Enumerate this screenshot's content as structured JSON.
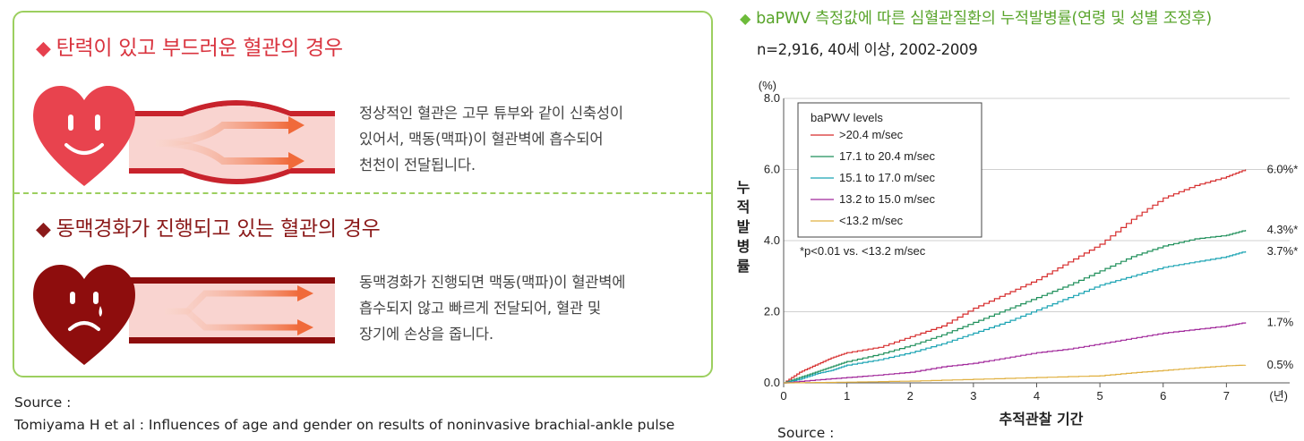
{
  "left_panel": {
    "section1": {
      "title": "탄력이 있고 부드러운 혈관의 경우",
      "desc_lines": [
        "정상적인 혈관은 고무 튜부와 같이 신축성이",
        "있어서, 맥동(맥파)이 혈관벽에 흡수되어",
        "천천이 전달됩니다."
      ]
    },
    "section2": {
      "title": "동맥경화가 진행되고 있는 혈관의 경우",
      "desc_lines": [
        "동맥경화가 진행되면 맥동(맥파)이 혈관벽에",
        "흡수되지 않고 빠르게 전달되어, 혈관 및",
        "장기에 손상을 줍니다."
      ]
    },
    "source_label": "Source :",
    "source_text": "Tomiyama H et al : Influences of age and gender on results of noninvasive brachial-ankle pulse"
  },
  "chart_header": {
    "title": "baPWV 측정값에 따른 심혈관질환의 누적발병률(연령 및 성별 조정후)",
    "subtitle": "n=2,916,  40세 이상, 2002-2009"
  },
  "chart_source_label": "Source :",
  "chart_data": {
    "type": "line",
    "title": "baPWV 측정값에 따른 심혈관질환의 누적발병률(연령 및 성별 조정후)",
    "xlabel": "추적관찰 기간",
    "x_unit": "(년)",
    "ylabel": "누적발병률",
    "y_unit": "(%)",
    "xlim": [
      0,
      8
    ],
    "ylim": [
      0,
      8
    ],
    "x_ticks": [
      "0",
      "1",
      "2",
      "3",
      "4",
      "5",
      "6",
      "7"
    ],
    "y_ticks": [
      "0.0",
      "2.0",
      "4.0",
      "6.0",
      "8.0"
    ],
    "grid": true,
    "legend_title": "baPWV levels",
    "legend_position": "top-left",
    "annotation": "*p<0.01 vs. <13.2 m/sec",
    "series": [
      {
        "name": ">20.4 m/sec",
        "color": "#d62b2b",
        "end_label": "6.0%*",
        "x": [
          0,
          0.25,
          0.5,
          0.75,
          1,
          1.5,
          2,
          2.5,
          3,
          3.5,
          4,
          4.5,
          5,
          5.5,
          6,
          6.5,
          7,
          7.3
        ],
        "y": [
          0,
          0.3,
          0.5,
          0.7,
          0.85,
          1.0,
          1.3,
          1.6,
          2.1,
          2.5,
          2.9,
          3.4,
          3.9,
          4.6,
          5.2,
          5.55,
          5.8,
          6.0
        ]
      },
      {
        "name": "17.1 to 20.4 m/sec",
        "color": "#1f8f5a",
        "end_label": "4.3%*",
        "x": [
          0,
          0.25,
          0.5,
          0.75,
          1,
          1.5,
          2,
          2.5,
          3,
          3.5,
          4,
          4.5,
          5,
          5.5,
          6,
          6.5,
          7,
          7.3
        ],
        "y": [
          0,
          0.15,
          0.3,
          0.45,
          0.6,
          0.8,
          1.05,
          1.35,
          1.7,
          2.05,
          2.4,
          2.75,
          3.15,
          3.55,
          3.85,
          4.05,
          4.15,
          4.3
        ]
      },
      {
        "name": "15.1 to 17.0 m/sec",
        "color": "#1aa3b3",
        "end_label": "3.7%*",
        "x": [
          0,
          0.25,
          0.5,
          0.75,
          1,
          1.5,
          2,
          2.5,
          3,
          3.5,
          4,
          4.5,
          5,
          5.5,
          6,
          6.5,
          7,
          7.3
        ],
        "y": [
          0,
          0.1,
          0.25,
          0.35,
          0.5,
          0.65,
          0.85,
          1.1,
          1.4,
          1.7,
          2.05,
          2.4,
          2.75,
          3.0,
          3.25,
          3.4,
          3.55,
          3.7
        ]
      },
      {
        "name": "13.2 to 15.0 m/sec",
        "color": "#a0279a",
        "end_label": "1.7%",
        "x": [
          0,
          0.5,
          1,
          1.5,
          2,
          2.5,
          3,
          3.5,
          4,
          4.5,
          5,
          5.5,
          6,
          6.5,
          7,
          7.3
        ],
        "y": [
          0,
          0.08,
          0.15,
          0.22,
          0.3,
          0.45,
          0.55,
          0.7,
          0.85,
          0.95,
          1.1,
          1.25,
          1.4,
          1.5,
          1.6,
          1.7
        ]
      },
      {
        "name": "<13.2 m/sec",
        "color": "#e0b040",
        "end_label": "0.5%",
        "x": [
          0,
          1,
          2,
          3,
          4,
          5,
          5.5,
          6,
          6.5,
          7,
          7.3
        ],
        "y": [
          0,
          0.02,
          0.05,
          0.1,
          0.15,
          0.2,
          0.28,
          0.35,
          0.42,
          0.48,
          0.5
        ]
      }
    ]
  },
  "colors": {
    "panel_border": "#9ccf5f",
    "healthy_heart": "#e8434e",
    "diseased_heart": "#8e0d0d",
    "title_green": "#5aa52c"
  },
  "icons": {
    "healthy": "smiling-heart-icon",
    "diseased": "sad-heart-icon",
    "bullet": "diamond-bullet-icon"
  }
}
